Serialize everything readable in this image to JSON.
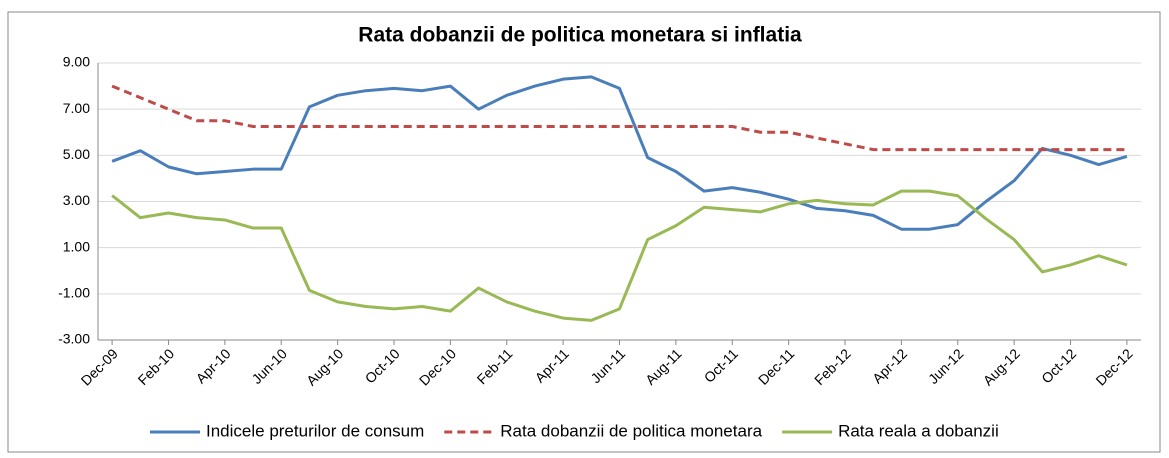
{
  "chart_data": {
    "type": "line",
    "title": "Rata dobanzii de politica monetara si inflatia",
    "categories": [
      "Dec-09",
      null,
      "Feb-10",
      null,
      "Apr-10",
      null,
      "Jun-10",
      null,
      "Aug-10",
      null,
      "Oct-10",
      null,
      "Dec-10",
      null,
      "Feb-11",
      null,
      "Apr-11",
      null,
      "Jun-11",
      null,
      "Aug-11",
      null,
      "Oct-11",
      null,
      "Dec-11",
      null,
      "Feb-12",
      null,
      "Apr-12",
      null,
      "Jun-12",
      null,
      "Aug-12",
      null,
      "Oct-12",
      null,
      "Dec-12"
    ],
    "series": [
      {
        "name": "Indicele preturilor de consum",
        "color": "#4a7ebb",
        "dash": false,
        "values": [
          4.74,
          5.2,
          4.5,
          4.2,
          4.3,
          4.4,
          4.4,
          7.1,
          7.6,
          7.8,
          7.9,
          7.8,
          8.0,
          7.0,
          7.6,
          8.0,
          8.3,
          8.4,
          7.9,
          4.9,
          4.3,
          3.45,
          3.6,
          3.4,
          3.1,
          2.7,
          2.6,
          2.4,
          1.8,
          1.8,
          2.0,
          3.0,
          3.9,
          5.3,
          5.0,
          4.6,
          4.95
        ]
      },
      {
        "name": "Rata dobanzii de politica monetara",
        "color": "#be4b48",
        "dash": true,
        "values": [
          8.0,
          7.5,
          7.0,
          6.5,
          6.5,
          6.25,
          6.25,
          6.25,
          6.25,
          6.25,
          6.25,
          6.25,
          6.25,
          6.25,
          6.25,
          6.25,
          6.25,
          6.25,
          6.25,
          6.25,
          6.25,
          6.25,
          6.25,
          6.0,
          6.0,
          5.75,
          5.5,
          5.25,
          5.25,
          5.25,
          5.25,
          5.25,
          5.25,
          5.25,
          5.25,
          5.25,
          5.25
        ]
      },
      {
        "name": "Rata reala a dobanzii",
        "color": "#98b954",
        "dash": false,
        "values": [
          3.26,
          2.3,
          2.5,
          2.3,
          2.2,
          1.85,
          1.85,
          -0.85,
          -1.35,
          -1.55,
          -1.65,
          -1.55,
          -1.75,
          -0.75,
          -1.35,
          -1.75,
          -2.05,
          -2.15,
          -1.65,
          1.35,
          1.95,
          2.75,
          2.65,
          2.55,
          2.9,
          3.05,
          2.9,
          2.85,
          3.45,
          3.45,
          3.25,
          2.25,
          1.35,
          -0.05,
          0.25,
          0.65,
          0.25
        ]
      }
    ],
    "ylim": [
      -3,
      9
    ],
    "yticks": [
      {
        "value": -3,
        "label": "-3.00"
      },
      {
        "value": -1,
        "label": "-1.00"
      },
      {
        "value": 1,
        "label": "1.00"
      },
      {
        "value": 3,
        "label": "3.00"
      },
      {
        "value": 5,
        "label": "5.00"
      },
      {
        "value": 7,
        "label": "7.00"
      },
      {
        "value": 9,
        "label": "9.00"
      }
    ],
    "grid": true,
    "legend": "bottom"
  }
}
